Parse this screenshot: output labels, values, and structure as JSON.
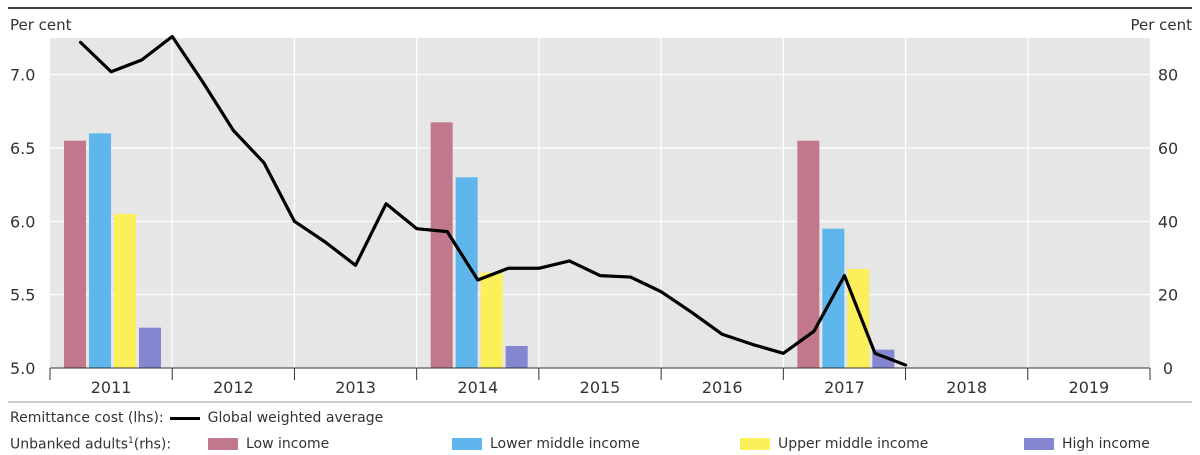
{
  "chart_data": {
    "type": "bar+line",
    "title": "",
    "left_axis": {
      "label": "Per cent",
      "ticks": [
        "5.0",
        "5.5",
        "6.0",
        "6.5",
        "7.0"
      ],
      "range": [
        5.0,
        7.25
      ]
    },
    "right_axis": {
      "label": "Per cent",
      "ticks": [
        "0",
        "20",
        "40",
        "60",
        "80"
      ],
      "range": [
        0,
        90
      ]
    },
    "x_ticks": [
      "2011",
      "2012",
      "2013",
      "2014",
      "2015",
      "2016",
      "2017",
      "2018",
      "2019"
    ],
    "line_series": {
      "name": "Global weighted average",
      "axis": "left",
      "points": [
        {
          "x": 2010.75,
          "y": 7.22
        },
        {
          "x": 2011.0,
          "y": 7.02
        },
        {
          "x": 2011.25,
          "y": 7.1
        },
        {
          "x": 2011.5,
          "y": 7.26
        },
        {
          "x": 2011.75,
          "y": 6.95
        },
        {
          "x": 2012.0,
          "y": 6.62
        },
        {
          "x": 2012.25,
          "y": 6.4
        },
        {
          "x": 2012.5,
          "y": 6.0
        },
        {
          "x": 2012.75,
          "y": 5.86
        },
        {
          "x": 2013.0,
          "y": 5.7
        },
        {
          "x": 2013.25,
          "y": 6.12
        },
        {
          "x": 2013.5,
          "y": 5.95
        },
        {
          "x": 2013.75,
          "y": 5.93
        },
        {
          "x": 2014.0,
          "y": 5.6
        },
        {
          "x": 2014.25,
          "y": 5.68
        },
        {
          "x": 2014.5,
          "y": 5.68
        },
        {
          "x": 2014.75,
          "y": 5.73
        },
        {
          "x": 2015.0,
          "y": 5.63
        },
        {
          "x": 2015.25,
          "y": 5.62
        },
        {
          "x": 2015.5,
          "y": 5.52
        },
        {
          "x": 2015.75,
          "y": 5.38
        },
        {
          "x": 2016.0,
          "y": 5.23
        },
        {
          "x": 2016.25,
          "y": 5.16
        },
        {
          "x": 2016.5,
          "y": 5.1
        },
        {
          "x": 2016.75,
          "y": 5.25
        },
        {
          "x": 2017.0,
          "y": 5.63
        },
        {
          "x": 2017.25,
          "y": 5.1
        },
        {
          "x": 2017.5,
          "y": 5.02
        }
      ]
    },
    "bar_groups": [
      {
        "year": "2011",
        "values": [
          62,
          64,
          42,
          11
        ]
      },
      {
        "year": "2014",
        "values": [
          67,
          52,
          26,
          6
        ]
      },
      {
        "year": "2017",
        "values": [
          62,
          38,
          27,
          5
        ]
      }
    ],
    "bar_series": [
      {
        "name": "Low income",
        "color": "#c0788a"
      },
      {
        "name": "Lower middle income",
        "color": "#5fb6ec"
      },
      {
        "name": "Upper middle income",
        "color": "#fbef5a"
      },
      {
        "name": "High income",
        "color": "#8486cf"
      }
    ],
    "grid": true,
    "background": "#e6e6e6"
  },
  "legend": {
    "line_prefix": "Remittance cost (lhs):",
    "line_label": "Global weighted average",
    "bar_prefix_main": "Unbanked adults",
    "bar_prefix_sup": "1",
    "bar_prefix_tail": "(rhs):",
    "items": [
      "Low income",
      "Lower middle income",
      "Upper middle income",
      "High income"
    ]
  }
}
